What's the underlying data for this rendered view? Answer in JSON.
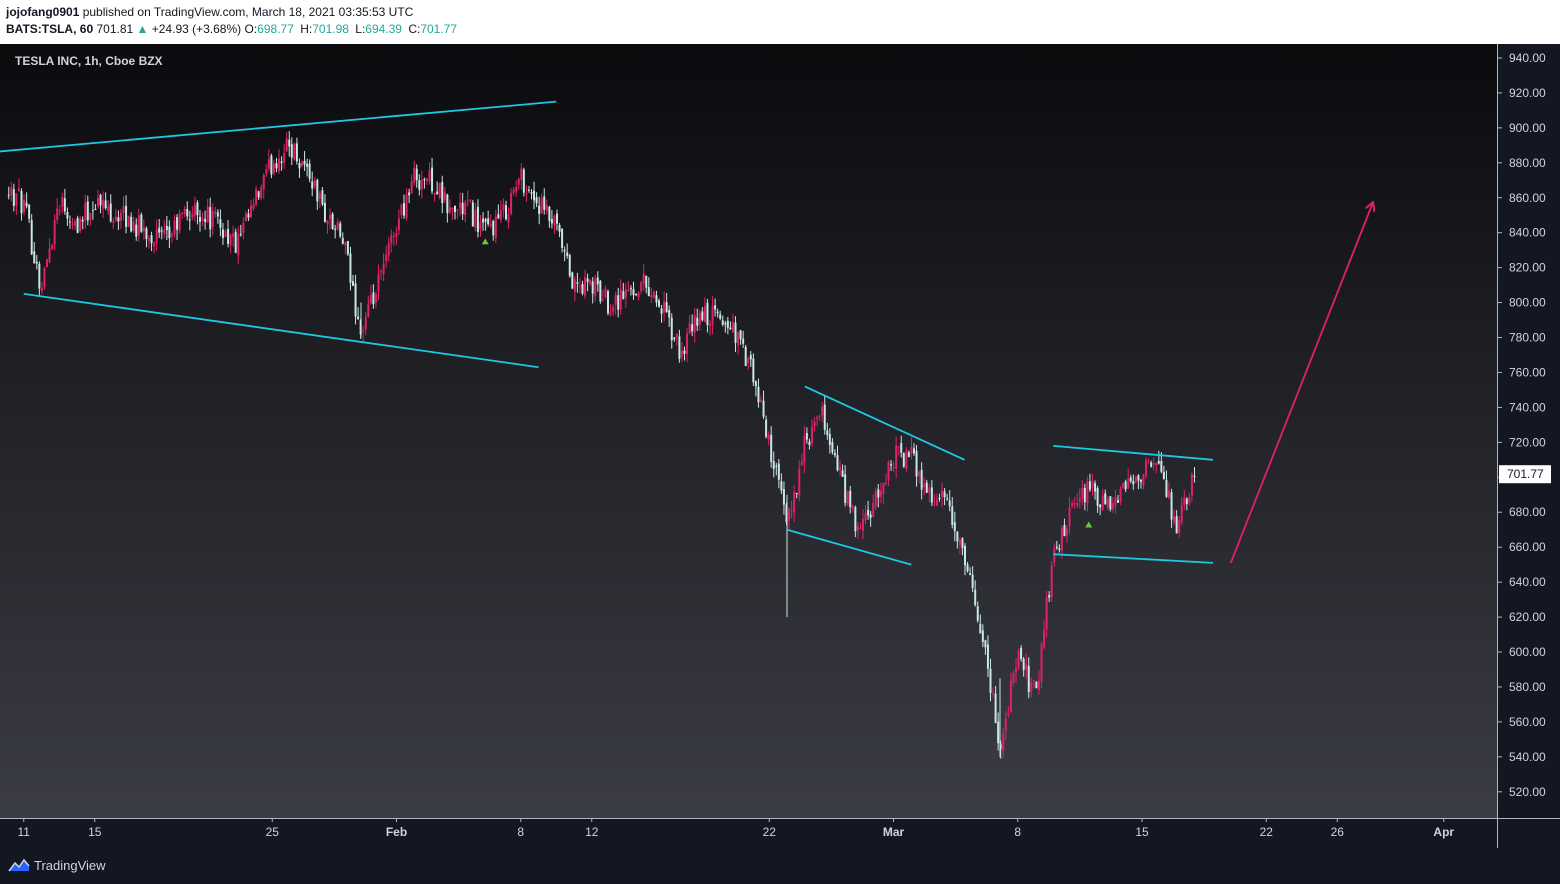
{
  "header": {
    "author": "jojofang0901",
    "published": "published on TradingView.com, March 18, 2021 03:35:53 UTC",
    "symbol": "BATS:TSLA, 60",
    "last": "701.81",
    "change_arrow": "▲",
    "change": "+24.93 (+3.68%)",
    "o_label": "O:",
    "o_value": "698.77",
    "h_label": "H:",
    "h_value": "701.98",
    "l_label": "L:",
    "l_value": "694.39",
    "c_label": "C:",
    "c_value": "701.77"
  },
  "footer": {
    "brand": "TradingView",
    "logo_icon": "tradingview-logo-icon"
  },
  "colors": {
    "bg_top": "#0b0b0e",
    "bg_bottom": "#3d3e46",
    "up": "#e0206a",
    "down": "#c9e7e5",
    "trendline": "#1ec8e0",
    "arrow": "#e0206a",
    "marker": "#6cc63c",
    "axis_text": "#d1d4dc",
    "last_price_bg": "#ffffff"
  },
  "chart_data": {
    "type": "candlestick",
    "title": "TESLA INC, 1h, Cboe BZX",
    "ylim": [
      505,
      948
    ],
    "y_ticks": [
      940,
      920,
      900,
      880,
      860,
      840,
      820,
      800,
      780,
      760,
      740,
      720,
      700,
      680,
      660,
      640,
      620,
      600,
      580,
      560,
      540,
      520
    ],
    "y_tick_labels": [
      "940.00",
      "920.00",
      "900.00",
      "880.00",
      "860.00",
      "840.00",
      "820.00",
      "800.00",
      "780.00",
      "760.00",
      "740.00",
      "720.00",
      "700.00",
      "680.00",
      "660.00",
      "640.00",
      "620.00",
      "600.00",
      "580.00",
      "560.00",
      "540.00",
      "520.00"
    ],
    "x_range": [
      "2021-01-10",
      "2021-04-04"
    ],
    "x_ticks": [
      {
        "date": "2021-01-11",
        "label": "11",
        "bold": false
      },
      {
        "date": "2021-01-15",
        "label": "15",
        "bold": false
      },
      {
        "date": "2021-01-25",
        "label": "25",
        "bold": false
      },
      {
        "date": "2021-02-01",
        "label": "Feb",
        "bold": true
      },
      {
        "date": "2021-02-08",
        "label": "8",
        "bold": false
      },
      {
        "date": "2021-02-12",
        "label": "12",
        "bold": false
      },
      {
        "date": "2021-02-22",
        "label": "22",
        "bold": false
      },
      {
        "date": "2021-03-01",
        "label": "Mar",
        "bold": true
      },
      {
        "date": "2021-03-08",
        "label": "8",
        "bold": false
      },
      {
        "date": "2021-03-15",
        "label": "15",
        "bold": false
      },
      {
        "date": "2021-03-22",
        "label": "22",
        "bold": false
      },
      {
        "date": "2021-03-26",
        "label": "26",
        "bold": false
      },
      {
        "date": "2021-04-01",
        "label": "Apr",
        "bold": true
      }
    ],
    "last_price": 701.77,
    "last_price_label": "701.77",
    "price_path": [
      [
        "2021-01-08",
        882
      ],
      [
        "2021-01-11",
        856
      ],
      [
        "2021-01-12",
        808
      ],
      [
        "2021-01-13",
        860
      ],
      [
        "2021-01-14",
        845
      ],
      [
        "2021-01-15",
        858
      ],
      [
        "2021-01-18",
        840
      ],
      [
        "2021-01-19",
        835
      ],
      [
        "2021-01-20",
        850
      ],
      [
        "2021-01-21",
        852
      ],
      [
        "2021-01-22",
        845
      ],
      [
        "2021-01-23",
        832
      ],
      [
        "2021-01-25",
        880
      ],
      [
        "2021-01-26",
        890
      ],
      [
        "2021-01-27",
        876
      ],
      [
        "2021-01-28",
        850
      ],
      [
        "2021-01-29",
        835
      ],
      [
        "2021-01-30",
        782
      ],
      [
        "2021-01-31",
        810
      ],
      [
        "2021-02-01",
        845
      ],
      [
        "2021-02-02",
        872
      ],
      [
        "2021-02-03",
        870
      ],
      [
        "2021-02-04",
        852
      ],
      [
        "2021-02-05",
        855
      ],
      [
        "2021-02-06",
        840
      ],
      [
        "2021-02-07",
        850
      ],
      [
        "2021-02-08",
        872
      ],
      [
        "2021-02-09",
        856
      ],
      [
        "2021-02-10",
        842
      ],
      [
        "2021-02-11",
        808
      ],
      [
        "2021-02-12",
        810
      ],
      [
        "2021-02-13",
        800
      ],
      [
        "2021-02-15",
        812
      ],
      [
        "2021-02-16",
        796
      ],
      [
        "2021-02-17",
        770
      ],
      [
        "2021-02-18",
        792
      ],
      [
        "2021-02-19",
        792
      ],
      [
        "2021-02-20",
        785
      ],
      [
        "2021-02-21",
        760
      ],
      [
        "2021-02-22",
        720
      ],
      [
        "2021-02-23",
        672
      ],
      [
        "2021-02-24",
        718
      ],
      [
        "2021-02-25",
        735
      ],
      [
        "2021-02-26",
        700
      ],
      [
        "2021-02-27",
        668
      ],
      [
        "2021-02-28",
        685
      ],
      [
        "2021-03-01",
        712
      ],
      [
        "2021-03-02",
        712
      ],
      [
        "2021-03-03",
        690
      ],
      [
        "2021-03-04",
        685
      ],
      [
        "2021-03-05",
        650
      ],
      [
        "2021-03-06",
        612
      ],
      [
        "2021-03-07",
        545
      ],
      [
        "2021-03-08",
        598
      ],
      [
        "2021-03-09",
        575
      ],
      [
        "2021-03-10",
        655
      ],
      [
        "2021-03-11",
        678
      ],
      [
        "2021-03-12",
        695
      ],
      [
        "2021-03-13",
        680
      ],
      [
        "2021-03-15",
        705
      ],
      [
        "2021-03-16",
        705
      ],
      [
        "2021-03-17",
        670
      ],
      [
        "2021-03-18",
        701.77
      ]
    ],
    "trendlines": [
      {
        "name": "upper-channel-jan",
        "from": [
          "2021-01-08",
          885
        ],
        "to": [
          "2021-02-10",
          915
        ]
      },
      {
        "name": "lower-channel-jan",
        "from": [
          "2021-01-11",
          805
        ],
        "to": [
          "2021-02-09",
          763
        ]
      },
      {
        "name": "wedge-upper-feb",
        "from": [
          "2021-02-24",
          752
        ],
        "to": [
          "2021-03-05",
          710
        ]
      },
      {
        "name": "wedge-lower-feb",
        "from": [
          "2021-02-23",
          670
        ],
        "to": [
          "2021-03-02",
          650
        ]
      },
      {
        "name": "flag-upper-mar",
        "from": [
          "2021-03-10",
          718
        ],
        "to": [
          "2021-03-19",
          710
        ]
      },
      {
        "name": "flag-lower-mar",
        "from": [
          "2021-03-10",
          656
        ],
        "to": [
          "2021-03-19",
          651
        ]
      }
    ],
    "arrow": {
      "from": [
        "2021-03-20",
        651
      ],
      "to": [
        "2021-03-28",
        857
      ]
    },
    "markers": [
      {
        "date": "2021-02-06",
        "price": 835
      },
      {
        "date": "2021-03-12",
        "price": 673
      }
    ]
  }
}
